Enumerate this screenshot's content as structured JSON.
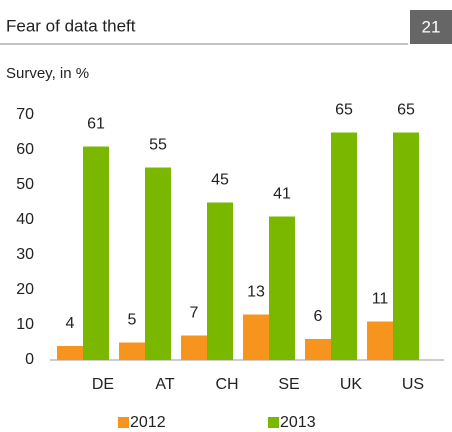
{
  "chart_data": {
    "type": "bar",
    "title": "Fear of data theft",
    "badge": "21",
    "subtitle": "Survey, in %",
    "categories": [
      "DE",
      "AT",
      "CH",
      "SE",
      "UK",
      "US"
    ],
    "series": [
      {
        "name": "2012",
        "color": "#f7941d",
        "values": [
          4,
          5,
          7,
          13,
          6,
          11
        ]
      },
      {
        "name": "2013",
        "color": "#7ab800",
        "values": [
          61,
          55,
          45,
          41,
          65,
          65
        ]
      }
    ],
    "ylim": [
      0,
      70
    ],
    "yticks": [
      0,
      10,
      20,
      30,
      40,
      50,
      60,
      70
    ],
    "grid": false,
    "legend": "bottom"
  }
}
